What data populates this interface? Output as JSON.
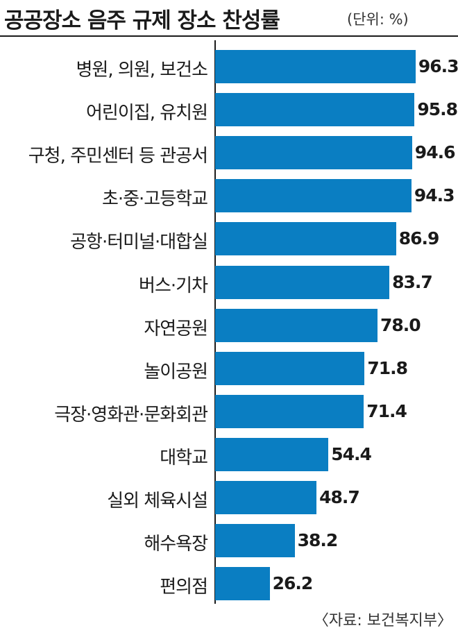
{
  "chart_data": {
    "type": "bar",
    "orientation": "horizontal",
    "title": "공공장소 음주 규제 장소 찬성률",
    "unit_label": "(단위: %)",
    "source": "〈자료: 보건복지부〉",
    "categories": [
      "병원, 의원, 보건소",
      "어린이집, 유치원",
      "구청, 주민센터 등 관공서",
      "초·중·고등학교",
      "공항·터미널·대합실",
      "버스·기차",
      "자연공원",
      "놀이공원",
      "극장·영화관·문화회관",
      "대학교",
      "실외 체육시설",
      "해수욕장",
      "편의점"
    ],
    "values": [
      96.3,
      95.8,
      94.6,
      94.3,
      86.9,
      83.7,
      78.0,
      71.8,
      71.4,
      54.4,
      48.7,
      38.2,
      26.2
    ],
    "value_labels": [
      "96.3",
      "95.8",
      "94.6",
      "94.3",
      "86.9",
      "83.7",
      "78.0",
      "71.8",
      "71.4",
      "54.4",
      "48.7",
      "38.2",
      "26.2"
    ],
    "xlim": [
      0,
      100
    ],
    "bar_color": "#0a7ec2",
    "grid": false,
    "legend": "none"
  }
}
